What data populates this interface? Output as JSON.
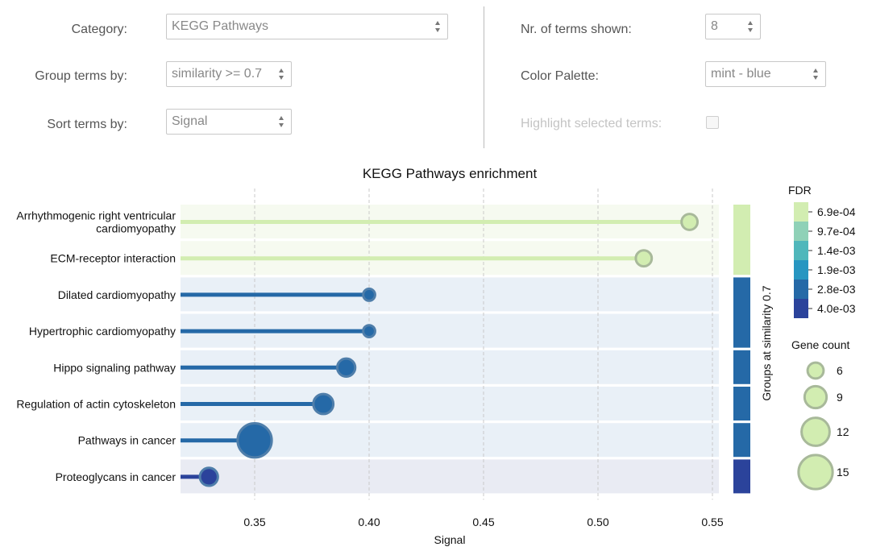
{
  "controls": {
    "category": {
      "label": "Category:",
      "value": "KEGG Pathways"
    },
    "group_by": {
      "label": "Group terms by:",
      "value": "similarity >= 0.7"
    },
    "sort_by": {
      "label": "Sort terms by:",
      "value": "Signal"
    },
    "terms_shown": {
      "label": "Nr. of terms shown:",
      "value": "8"
    },
    "palette": {
      "label": "Color Palette:",
      "value": "mint - blue"
    },
    "highlight": {
      "label": "Highlight selected terms:"
    }
  },
  "chart_data": {
    "type": "scatter",
    "title": "KEGG Pathways enrichment",
    "xlabel": "Signal",
    "xlim": [
      0.32,
      0.555
    ],
    "xticks": [
      "0.35",
      "0.40",
      "0.45",
      "0.50",
      "0.55"
    ],
    "group_axis_label": "Groups at similarity 0.7",
    "terms": [
      {
        "name": "Arrhythmogenic right ventricular cardiomyopathy",
        "lines": [
          "Arrhythmogenic right ventricular",
          "cardiomyopathy"
        ],
        "signal": 0.54,
        "gene_count": 6,
        "fdr": 0.00069,
        "color": "#d2edb1",
        "group": 1
      },
      {
        "name": "ECM-receptor interaction",
        "lines": [
          "ECM-receptor interaction"
        ],
        "signal": 0.52,
        "gene_count": 6,
        "fdr": 0.00069,
        "color": "#d2edb1",
        "group": 1
      },
      {
        "name": "Dilated cardiomyopathy",
        "lines": [
          "Dilated cardiomyopathy"
        ],
        "signal": 0.4,
        "gene_count": 4,
        "fdr": 0.0028,
        "color": "#2569a7",
        "group": 2
      },
      {
        "name": "Hypertrophic cardiomyopathy",
        "lines": [
          "Hypertrophic cardiomyopathy"
        ],
        "signal": 0.4,
        "gene_count": 4,
        "fdr": 0.0028,
        "color": "#2569a7",
        "group": 2
      },
      {
        "name": "Hippo signaling pathway",
        "lines": [
          "Hippo signaling pathway"
        ],
        "signal": 0.39,
        "gene_count": 7,
        "fdr": 0.0028,
        "color": "#2569a7",
        "group": 3
      },
      {
        "name": "Regulation of actin cytoskeleton",
        "lines": [
          "Regulation of actin cytoskeleton"
        ],
        "signal": 0.38,
        "gene_count": 8,
        "fdr": 0.0028,
        "color": "#2569a7",
        "group": 4
      },
      {
        "name": "Pathways in cancer",
        "lines": [
          "Pathways in cancer"
        ],
        "signal": 0.35,
        "gene_count": 15,
        "fdr": 0.0028,
        "color": "#2569a7",
        "group": 5
      },
      {
        "name": "Proteoglycans in cancer",
        "lines": [
          "Proteoglycans in cancer"
        ],
        "signal": 0.33,
        "gene_count": 7,
        "fdr": 0.004,
        "color": "#2b439b",
        "group": 6
      }
    ],
    "group_colors": [
      "#d2edb1",
      "#2569a7",
      "#2569a7",
      "#2569a7",
      "#2569a7",
      "#2b439b"
    ],
    "fdr_legend": {
      "title": "FDR",
      "labels": [
        "6.9e-04",
        "9.7e-04",
        "1.4e-03",
        "1.9e-03",
        "2.8e-03",
        "4.0e-03"
      ],
      "colors": [
        "#d2edb1",
        "#8fd1b7",
        "#4fb7bb",
        "#2796c1",
        "#2569a7",
        "#2b439b"
      ]
    },
    "size_legend": {
      "title": "Gene count",
      "values": [
        6,
        9,
        12,
        15
      ],
      "labels": [
        "6",
        "9",
        "12",
        "15"
      ],
      "color": "#d2edb1"
    }
  }
}
